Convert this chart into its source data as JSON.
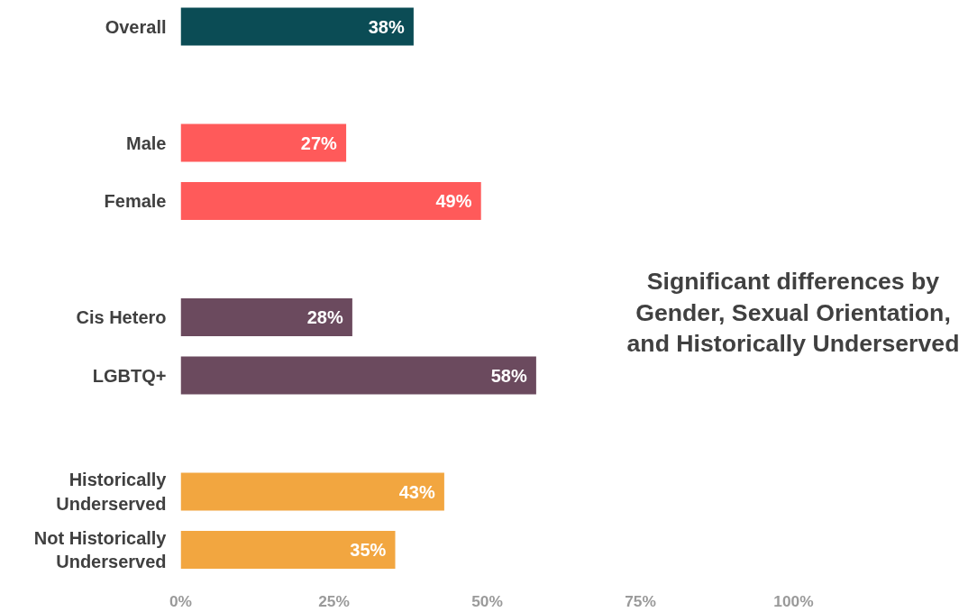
{
  "chart_data": {
    "type": "bar",
    "orientation": "horizontal",
    "categories": [
      "Overall",
      null,
      "Male",
      "Female",
      null,
      "Cis Hetero",
      "LGBTQ+",
      null,
      "Historically Underserved",
      "Not Historically Underserved"
    ],
    "values": [
      38,
      null,
      27,
      49,
      null,
      28,
      58,
      null,
      43,
      35
    ],
    "colors": [
      "#0b4c55",
      null,
      "#ff5a5a",
      "#ff5a5a",
      null,
      "#6b4a5e",
      "#6b4a5e",
      null,
      "#f2a640",
      "#f2a640"
    ],
    "value_labels": [
      "38%",
      null,
      "27%",
      "49%",
      null,
      "28%",
      "58%",
      null,
      "43%",
      "35%"
    ],
    "xlim": [
      0,
      100
    ],
    "xticks": [
      {
        "value": 0,
        "label": "0%"
      },
      {
        "value": 25,
        "label": "25%"
      },
      {
        "value": 50,
        "label": "50%"
      },
      {
        "value": 75,
        "label": "75%"
      },
      {
        "value": 100,
        "label": "100%"
      }
    ],
    "grid": false,
    "annotations": [
      "Significant differences by Gender, Sexual Orientation, and Historically Underserved"
    ]
  }
}
